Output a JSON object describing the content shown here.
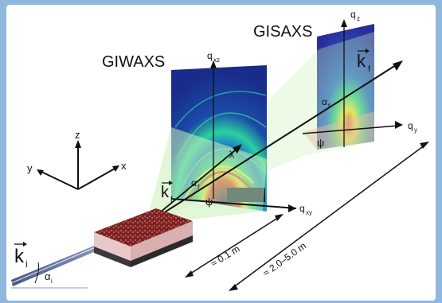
{
  "labels": {
    "giwaxs": "GIWAXS",
    "gisaxs": "GISAXS",
    "axis_x": "x",
    "axis_y": "y",
    "axis_z": "z",
    "q_xz": "q",
    "q_xz_sub": "xz",
    "q_xy": "q",
    "q_xy_sub": "xy",
    "q_z": "q",
    "q_z_sub": "z",
    "q_y": "q",
    "q_y_sub": "y",
    "k_i": "k",
    "k_i_sub": "i",
    "k_f_front": "k",
    "k_f_front_sub": "f",
    "k_f_back": "k",
    "k_f_back_sub": "f",
    "alpha_i": "α",
    "alpha_i_sub": "i",
    "alpha_f_front": "α",
    "alpha_f_front_sub": "f",
    "alpha_f_back": "α",
    "alpha_f_back_sub": "f",
    "psi_front": "ψ",
    "psi_back": "ψ",
    "chi": "χ",
    "dist_short": "≈ 0.1 m",
    "dist_long": "≈ 2.0–5.0 m"
  },
  "colors": {
    "background": "#8fb8dc",
    "panel": "#ffffff",
    "detector_dark": "#1a2c8a",
    "ring_green": "#39d08a",
    "ring_yellow": "#f2e23a",
    "ring_red": "#e8381f",
    "sample_top": "#8a2a2a",
    "sample_side": "#e8c8c8",
    "sample_base": "#3a3a3a",
    "cone_green": "#c8f0b8",
    "beam": "#4a5a8a"
  }
}
